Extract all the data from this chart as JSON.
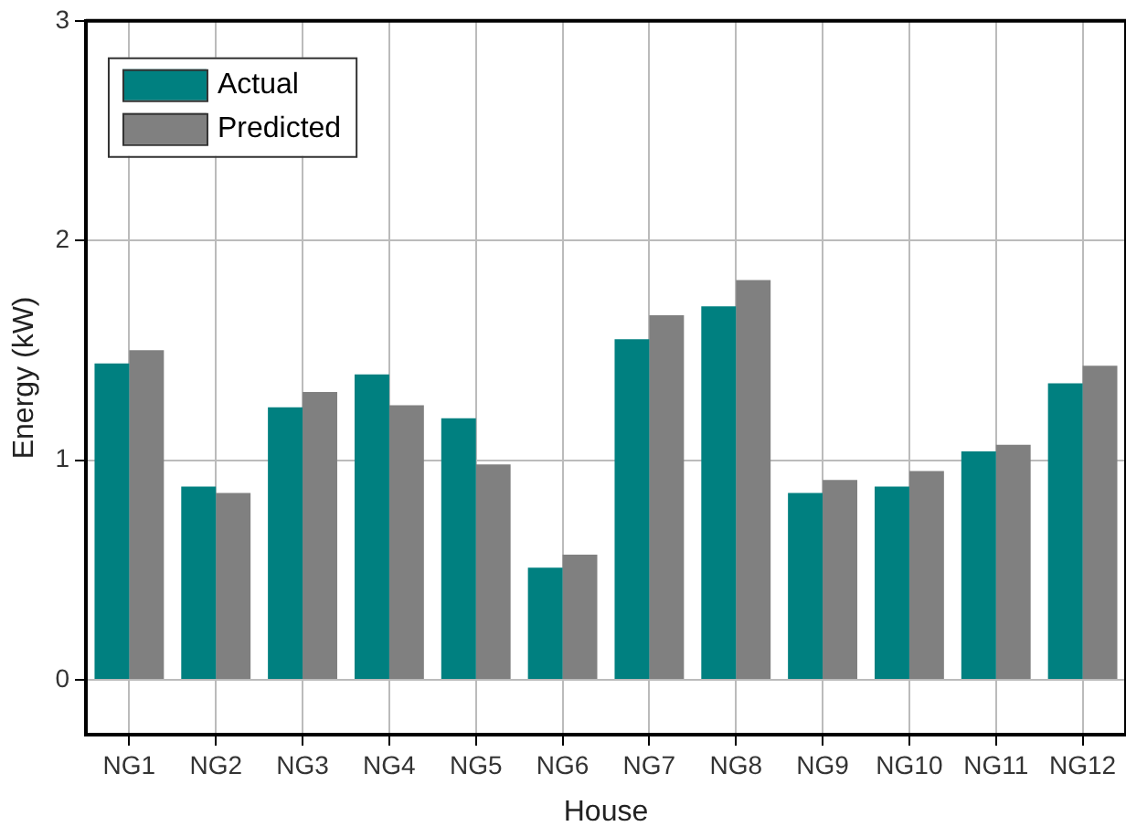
{
  "chart_data": {
    "type": "bar",
    "xlabel": "House",
    "ylabel": "Energy (kW)",
    "categories": [
      "NG1",
      "NG2",
      "NG3",
      "NG4",
      "NG5",
      "NG6",
      "NG7",
      "NG8",
      "NG9",
      "NG10",
      "NG11",
      "NG12"
    ],
    "series": [
      {
        "name": "Actual",
        "color": "#008080",
        "values": [
          1.44,
          0.88,
          1.24,
          1.39,
          1.19,
          0.51,
          1.55,
          1.7,
          0.85,
          0.88,
          1.04,
          1.35
        ]
      },
      {
        "name": "Predicted",
        "color": "#808080",
        "values": [
          1.5,
          0.85,
          1.31,
          1.25,
          0.98,
          0.57,
          1.66,
          1.82,
          0.91,
          0.95,
          1.07,
          1.43
        ]
      }
    ],
    "ylim": [
      -0.25,
      3
    ],
    "yticks": [
      0,
      1,
      2,
      3
    ],
    "grid": true,
    "legend": "top left"
  }
}
